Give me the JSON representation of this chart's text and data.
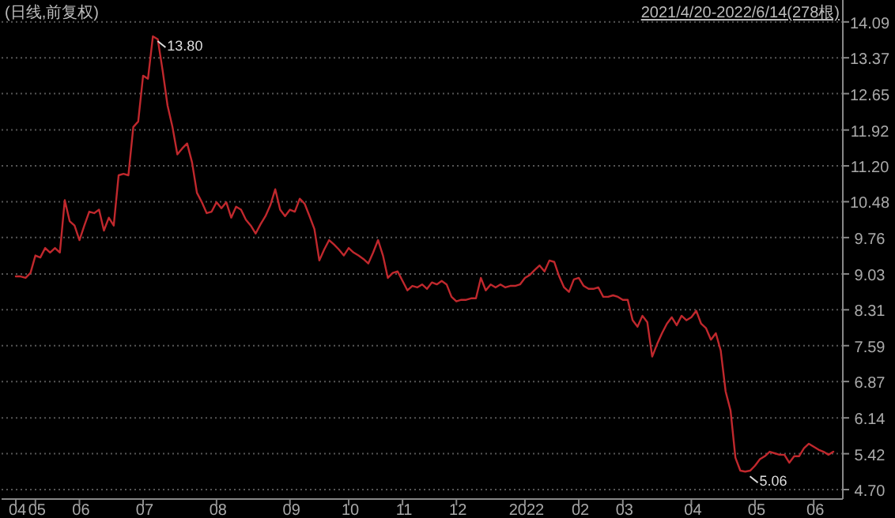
{
  "chart_data": {
    "type": "line",
    "title": "(日线,前复权)",
    "categories": [
      "04",
      null,
      null,
      null,
      "05",
      null,
      null,
      null,
      null,
      null,
      null,
      null,
      null,
      "06",
      null,
      null,
      null,
      null,
      null,
      null,
      null,
      null,
      null,
      null,
      null,
      null,
      "07",
      null,
      null,
      null,
      null,
      null,
      null,
      null,
      null,
      null,
      null,
      null,
      null,
      null,
      null,
      "08",
      null,
      null,
      null,
      null,
      null,
      null,
      null,
      null,
      null,
      null,
      null,
      null,
      null,
      null,
      "09",
      null,
      null,
      null,
      null,
      null,
      null,
      null,
      null,
      null,
      null,
      null,
      "10",
      null,
      null,
      null,
      null,
      null,
      null,
      null,
      null,
      null,
      null,
      "11",
      null,
      null,
      null,
      null,
      null,
      null,
      null,
      null,
      null,
      null,
      "12",
      null,
      null,
      null,
      null,
      null,
      null,
      null,
      null,
      null,
      null,
      null,
      null,
      null,
      "2022",
      null,
      null,
      null,
      null,
      null,
      null,
      null,
      null,
      null,
      null,
      "02",
      null,
      null,
      null,
      null,
      null,
      null,
      null,
      null,
      "03",
      null,
      null,
      null,
      null,
      null,
      null,
      null,
      null,
      null,
      null,
      null,
      null,
      null,
      "04",
      null,
      null,
      null,
      null,
      null,
      null,
      null,
      null,
      null,
      null,
      null,
      null,
      "05",
      null,
      null,
      null,
      null,
      null,
      null,
      null,
      null,
      null,
      null,
      null,
      "06",
      null,
      null,
      null,
      null
    ],
    "series": [
      {
        "color": "#c0282d",
        "values": [
          8.98,
          8.98,
          8.95,
          9.05,
          9.4,
          9.36,
          9.55,
          9.46,
          9.55,
          9.46,
          10.51,
          10.09,
          10.0,
          9.71,
          10.0,
          10.28,
          10.25,
          10.32,
          9.9,
          10.16,
          10.0,
          11.01,
          11.04,
          11.01,
          11.98,
          12.09,
          13.01,
          12.95,
          13.8,
          13.74,
          13.11,
          12.41,
          11.98,
          11.43,
          11.55,
          11.65,
          11.27,
          10.66,
          10.47,
          10.25,
          10.28,
          10.47,
          10.35,
          10.47,
          10.16,
          10.38,
          10.32,
          10.12,
          10.0,
          9.84,
          10.03,
          10.19,
          10.41,
          10.73,
          10.32,
          10.19,
          10.32,
          10.28,
          10.54,
          10.44,
          10.19,
          9.93,
          9.3,
          9.52,
          9.71,
          9.62,
          9.52,
          9.4,
          9.55,
          9.46,
          9.4,
          9.33,
          9.24,
          9.46,
          9.71,
          9.4,
          8.95,
          9.05,
          9.08,
          8.89,
          8.7,
          8.79,
          8.76,
          8.82,
          8.73,
          8.86,
          8.82,
          8.89,
          8.82,
          8.57,
          8.48,
          8.51,
          8.51,
          8.54,
          8.54,
          8.95,
          8.7,
          8.82,
          8.76,
          8.82,
          8.76,
          8.79,
          8.79,
          8.82,
          8.95,
          9.01,
          9.11,
          9.2,
          9.08,
          9.3,
          9.27,
          8.98,
          8.76,
          8.67,
          8.92,
          8.95,
          8.79,
          8.73,
          8.73,
          8.76,
          8.57,
          8.57,
          8.6,
          8.57,
          8.51,
          8.51,
          8.1,
          7.97,
          8.19,
          8.06,
          7.37,
          7.62,
          7.84,
          8.03,
          8.16,
          8.0,
          8.19,
          8.1,
          8.16,
          8.29,
          8.03,
          7.94,
          7.71,
          7.84,
          7.49,
          6.67,
          6.29,
          5.34,
          5.08,
          5.06,
          5.08,
          5.18,
          5.31,
          5.37,
          5.46,
          5.43,
          5.4,
          5.4,
          5.24,
          5.37,
          5.37,
          5.53,
          5.62,
          5.56,
          5.5,
          5.46,
          5.4,
          5.46
        ]
      }
    ],
    "ylim": [
      4.51,
      14.53
    ],
    "yticks": [
      14.09,
      13.37,
      12.65,
      11.92,
      {
        "value": 11.2,
        "label": "11.20"
      },
      10.48,
      9.76,
      9.03,
      8.31,
      7.59,
      6.87,
      6.14,
      5.42,
      {
        "value": 4.7,
        "label": "4.70"
      }
    ],
    "grid": "y",
    "annotations": [
      "2021/4/20-2022/6/14(278根)",
      "13.80",
      "5.06"
    ]
  }
}
